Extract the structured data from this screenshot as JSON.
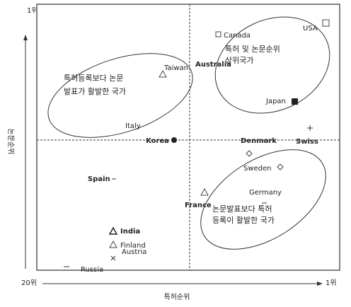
{
  "axes": {
    "y_top": "1위",
    "y_title": "논문순위",
    "x_left": "20위",
    "x_right": "1위",
    "x_title": "특허순위"
  },
  "groups": [
    {
      "lines": [
        "특허등록보다 논문",
        "발표가 활발한 국가"
      ]
    },
    {
      "lines": [
        "특허 및 논문순위",
        "상위국가"
      ]
    },
    {
      "lines": [
        "논문발표보다 특허",
        "등록이 활발한 국가"
      ]
    }
  ],
  "countries": [
    "Canada",
    "USA",
    "Taiwan",
    "Australia",
    "Japan",
    "Italy",
    "Korea",
    "Denmark",
    "Swiss",
    "Sweden",
    "Spain",
    "Germany",
    "France",
    "India",
    "Finland",
    "Austria",
    "Russia"
  ]
}
